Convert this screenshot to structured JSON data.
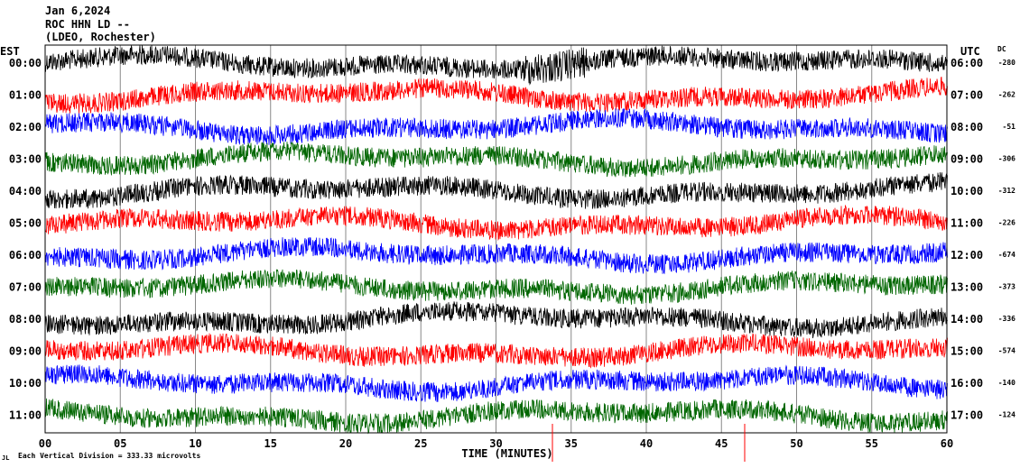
{
  "chart_data": {
    "type": "line",
    "header": {
      "date": "Jan 6,2024",
      "station": "ROC HHN LD --",
      "network": "(LDEO, Rochester)"
    },
    "left_zone": "EST",
    "right_zone": "UTC",
    "dc_label": "DC",
    "xlabel": "TIME (MINUTES)",
    "xlim": [
      0,
      60
    ],
    "x_ticks": [
      "00",
      "05",
      "10",
      "15",
      "20",
      "25",
      "30",
      "35",
      "40",
      "45",
      "50",
      "55",
      "60"
    ],
    "footer_note": "Each Vertical Division =  333.33 microvolts",
    "grid": true,
    "colors": [
      "#000000",
      "#ff0000",
      "#0000ff",
      "#006600"
    ],
    "traces": [
      {
        "est": "00:00",
        "utc": "06:00",
        "dc": "-280"
      },
      {
        "est": "01:00",
        "utc": "07:00",
        "dc": "-262"
      },
      {
        "est": "02:00",
        "utc": "08:00",
        "dc": "-51"
      },
      {
        "est": "03:00",
        "utc": "09:00",
        "dc": "-306"
      },
      {
        "est": "04:00",
        "utc": "10:00",
        "dc": "-312"
      },
      {
        "est": "05:00",
        "utc": "11:00",
        "dc": "-226"
      },
      {
        "est": "06:00",
        "utc": "12:00",
        "dc": "-674"
      },
      {
        "est": "07:00",
        "utc": "13:00",
        "dc": "-373"
      },
      {
        "est": "08:00",
        "utc": "14:00",
        "dc": "-336"
      },
      {
        "est": "09:00",
        "utc": "15:00",
        "dc": "-574"
      },
      {
        "est": "10:00",
        "utc": "16:00",
        "dc": "-140"
      },
      {
        "est": "11:00",
        "utc": "17:00",
        "dc": "-124"
      }
    ]
  }
}
